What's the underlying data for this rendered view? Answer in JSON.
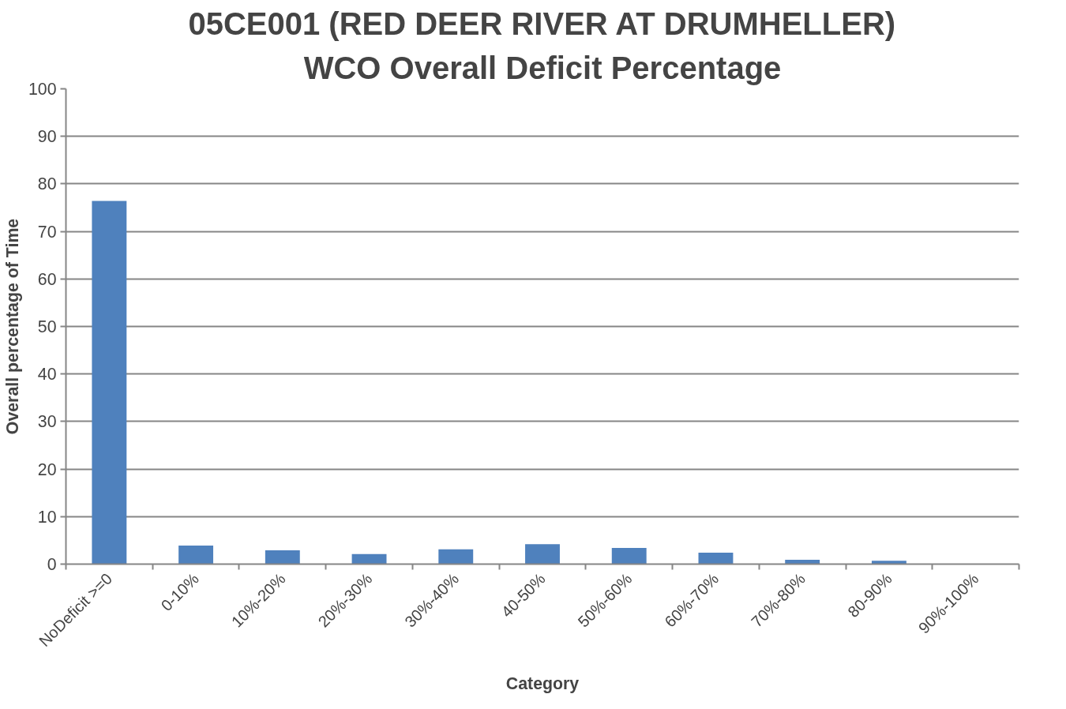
{
  "chart_data": {
    "type": "bar",
    "title": "05CE001 (RED DEER RIVER AT DRUMHELLER)",
    "subtitle": "WCO Overall Deficit Percentage",
    "xlabel": "Category",
    "ylabel": "Overall percentage of Time",
    "categories": [
      "NoDeficit >=0",
      "0-10%",
      "10%-20%",
      "20%-30%",
      "30%-40%",
      "40-50%",
      "50%-60%",
      "60%-70%",
      "70%-80%",
      "80-90%",
      "90%-100%"
    ],
    "values": [
      76.4,
      3.9,
      2.9,
      2.1,
      3.1,
      4.2,
      3.4,
      2.4,
      0.9,
      0.7,
      0
    ],
    "color": "#4f81bd",
    "ylim": [
      0,
      100
    ],
    "yticks": [
      0,
      10,
      20,
      30,
      40,
      50,
      60,
      70,
      80,
      90,
      100
    ],
    "grid": "y"
  }
}
